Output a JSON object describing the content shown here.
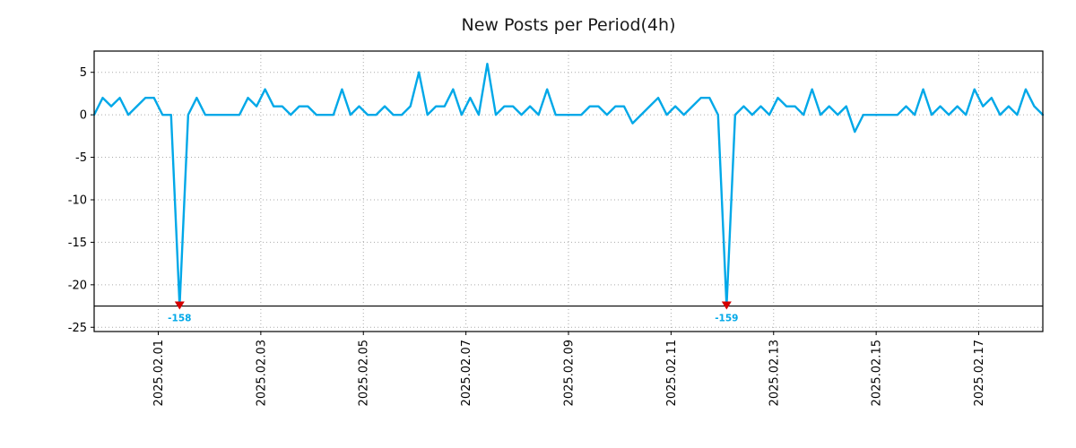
{
  "chart_data": {
    "type": "line",
    "title": "New Posts per Period(4h)",
    "xlabel": "",
    "ylabel": "",
    "series_name": "new-posts-per-4h",
    "line_color": "#00a8e8",
    "marker_color": "#d40000",
    "grid_color": "#aaaaaa",
    "axis_color": "#000000",
    "grid": "dotted",
    "legend": "none",
    "ylim": [
      -25.5,
      7.5
    ],
    "clip_line_y": -22.5,
    "yticks": [
      {
        "value": 5,
        "label": "5"
      },
      {
        "value": 0,
        "label": "0"
      },
      {
        "value": -5,
        "label": "-5"
      },
      {
        "value": -10,
        "label": "-10"
      },
      {
        "value": -15,
        "label": "-15"
      },
      {
        "value": -20,
        "label": "-20"
      },
      {
        "value": -25,
        "label": "-25"
      }
    ],
    "xticks": [
      {
        "pos": 7.5,
        "label": "2025.02.01"
      },
      {
        "pos": 19.5,
        "label": "2025.02.03"
      },
      {
        "pos": 31.5,
        "label": "2025.02.05"
      },
      {
        "pos": 43.5,
        "label": "2025.02.07"
      },
      {
        "pos": 55.5,
        "label": "2025.02.09"
      },
      {
        "pos": 67.5,
        "label": "2025.02.11"
      },
      {
        "pos": 79.5,
        "label": "2025.02.13"
      },
      {
        "pos": 91.5,
        "label": "2025.02.15"
      },
      {
        "pos": 103.5,
        "label": "2025.02.17"
      }
    ],
    "x_step_hours": 4,
    "values": [
      0,
      2,
      1,
      2,
      0,
      1,
      2,
      2,
      0,
      0,
      -158,
      0,
      2,
      0,
      0,
      0,
      0,
      0,
      2,
      1,
      3,
      1,
      1,
      0,
      1,
      1,
      0,
      0,
      0,
      3,
      0,
      1,
      0,
      0,
      1,
      0,
      0,
      1,
      5,
      0,
      1,
      1,
      3,
      0,
      2,
      0,
      6,
      0,
      1,
      1,
      0,
      1,
      0,
      3,
      0,
      0,
      0,
      0,
      1,
      1,
      0,
      1,
      1,
      -1,
      0,
      1,
      2,
      0,
      1,
      0,
      1,
      2,
      2,
      0,
      -159,
      0,
      1,
      0,
      1,
      0,
      2,
      1,
      1,
      0,
      3,
      0,
      1,
      0,
      1,
      -2,
      0,
      0,
      0,
      0,
      0,
      1,
      0,
      3,
      0,
      1,
      0,
      1,
      0,
      3,
      1,
      2,
      0,
      1,
      0,
      3,
      1,
      0
    ],
    "annotations": [
      {
        "index": 10,
        "value": -158,
        "label": "-158"
      },
      {
        "index": 74,
        "value": -159,
        "label": "-159"
      }
    ]
  }
}
